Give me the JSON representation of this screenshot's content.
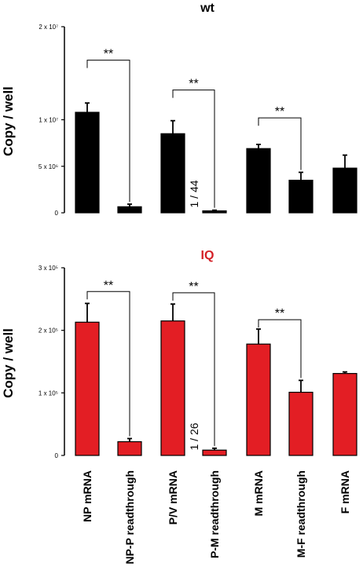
{
  "chart_data": [
    {
      "type": "bar",
      "title": "wt",
      "title_color": "#000000",
      "bar_color": "#000000",
      "ylabel": "Copy / well",
      "ylim": [
        0,
        20000000
      ],
      "yticks": [
        {
          "value": 0,
          "label": "0"
        },
        {
          "value": 5000000,
          "label": "5 x 10⁶"
        },
        {
          "value": 10000000,
          "label": "1 x 10⁷"
        },
        {
          "value": 20000000,
          "label": "2 x 10⁷"
        }
      ],
      "categories": [
        "NP mRNA",
        "NP-P readthrough",
        "P/V mRNA",
        "P-M readthrough",
        "M mRNA",
        "M-F readthrough",
        "F mRNA"
      ],
      "values": [
        10800000,
        650000,
        8500000,
        210000,
        6900000,
        3500000,
        4800000
      ],
      "errors": [
        1000000,
        280000,
        1400000,
        70000,
        450000,
        850000,
        1400000
      ],
      "significance": [
        {
          "from": 0,
          "to": 1,
          "label": "**",
          "level": 16400000
        },
        {
          "from": 2,
          "to": 3,
          "label": "**",
          "level": 13200000
        },
        {
          "from": 4,
          "to": 5,
          "label": "**",
          "level": 10200000
        }
      ],
      "annotations": [
        {
          "category": 3,
          "text": "1 / 44"
        }
      ]
    },
    {
      "type": "bar",
      "title": "IQ",
      "title_color": "#d42027",
      "bar_color": "#e31e24",
      "ylabel": "Copy / well",
      "ylim": [
        0,
        300000
      ],
      "yticks": [
        {
          "value": 0,
          "label": "0"
        },
        {
          "value": 100000,
          "label": "1 x 10⁵"
        },
        {
          "value": 200000,
          "label": "2 x 10⁵"
        },
        {
          "value": 300000,
          "label": "3 x 10⁵"
        }
      ],
      "categories": [
        "NP mRNA",
        "NP-P readthrough",
        "P/V mRNA",
        "P-M readthrough",
        "M mRNA",
        "M-F readthrough",
        "F mRNA"
      ],
      "values": [
        213000,
        22000,
        215000,
        8500,
        178000,
        101000,
        131000
      ],
      "errors": [
        30000,
        5000,
        27000,
        3000,
        24000,
        19000,
        2500
      ],
      "significance": [
        {
          "from": 0,
          "to": 1,
          "label": "**",
          "level": 262000
        },
        {
          "from": 2,
          "to": 3,
          "label": "**",
          "level": 260000
        },
        {
          "from": 4,
          "to": 5,
          "label": "**",
          "level": 217000
        }
      ],
      "annotations": [
        {
          "category": 3,
          "text": "1 / 26"
        }
      ]
    }
  ]
}
